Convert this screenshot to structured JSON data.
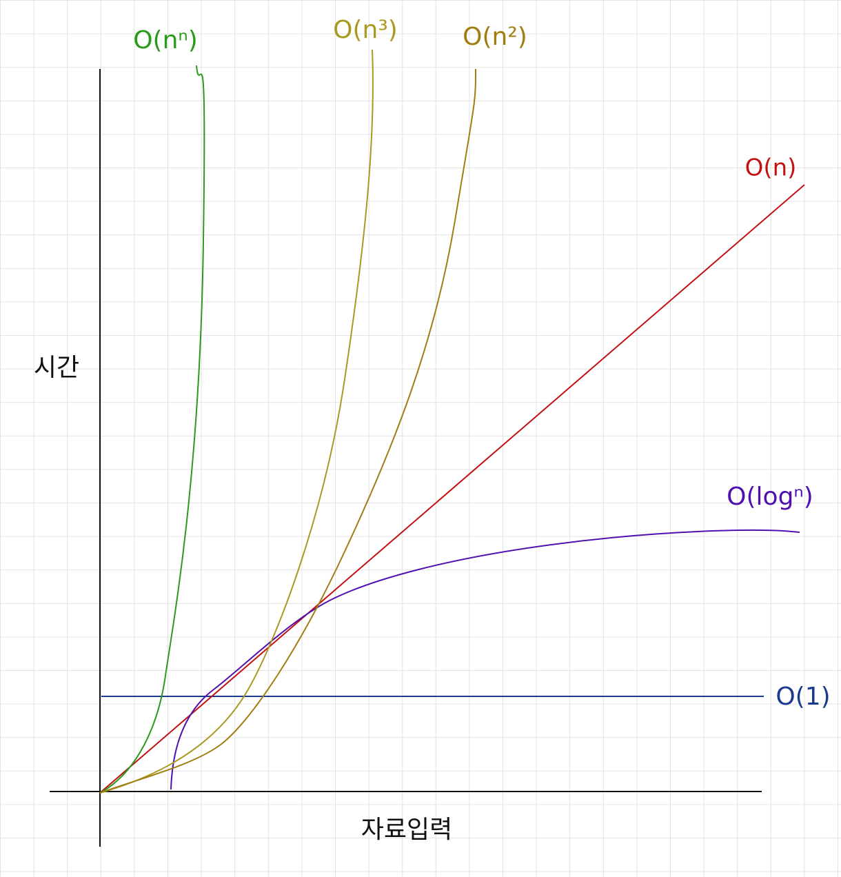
{
  "axes": {
    "y_label": "시간",
    "x_label": "자료입력"
  },
  "curves": [
    {
      "label": "O(nⁿ)"
    },
    {
      "label": "O(n³)"
    },
    {
      "label": "O(n²)"
    },
    {
      "label": "O(n)"
    },
    {
      "label": "O(logⁿ)"
    },
    {
      "label": "O(1)"
    }
  ]
}
